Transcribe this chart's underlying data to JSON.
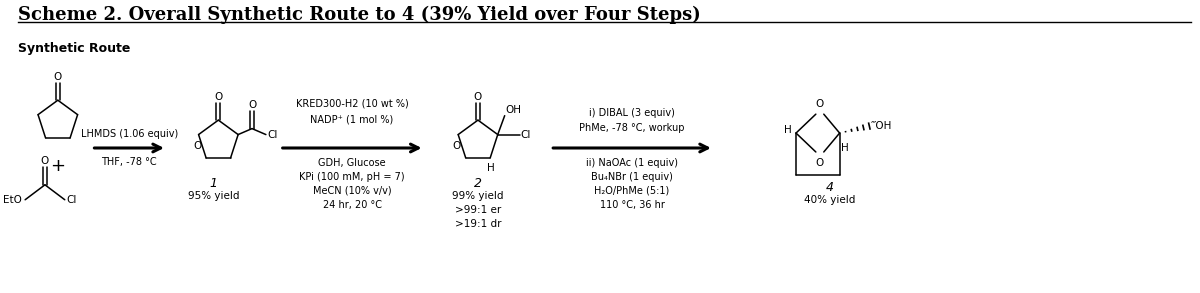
{
  "title": "Scheme 2. Overall Synthetic Route to 4 (39% Yield over Four Steps)",
  "subtitle": "Synthetic Route",
  "bg_color": "#ffffff",
  "text_color": "#000000",
  "title_fontsize": 13,
  "subtitle_fontsize": 9,
  "arrow1_label_top": "LHMDS (1.06 equiv)",
  "arrow1_label_bot": "THF, -78 °C",
  "compound1_label": "1",
  "compound1_yield": "95% yield",
  "arrow2_label_top1": "KRED300-H2 (10 wt %)",
  "arrow2_label_top2": "NADP⁺ (1 mol %)",
  "arrow2_label_bot1": "GDH, Glucose",
  "arrow2_label_bot2": "KPi (100 mM, pH = 7)",
  "arrow2_label_bot3": "MeCN (10% v/v)",
  "arrow2_label_bot4": "24 hr, 20 °C",
  "compound2_label": "2",
  "compound2_yield1": "99% yield",
  "compound2_yield2": ">99:1 er",
  "compound2_yield3": ">19:1 dr",
  "arrow3_label_top1": "i) DIBAL (3 equiv)",
  "arrow3_label_top2": "PhMe, -78 °C, workup",
  "arrow3_label_bot1": "ii) NaOAc (1 equiv)",
  "arrow3_label_bot2": "Bu₄NBr (1 equiv)",
  "arrow3_label_bot3": "H₂O/PhMe (5:1)",
  "arrow3_label_bot4": "110 °C, 36 hr",
  "compound4_label": "4",
  "compound4_yield": "40% yield"
}
